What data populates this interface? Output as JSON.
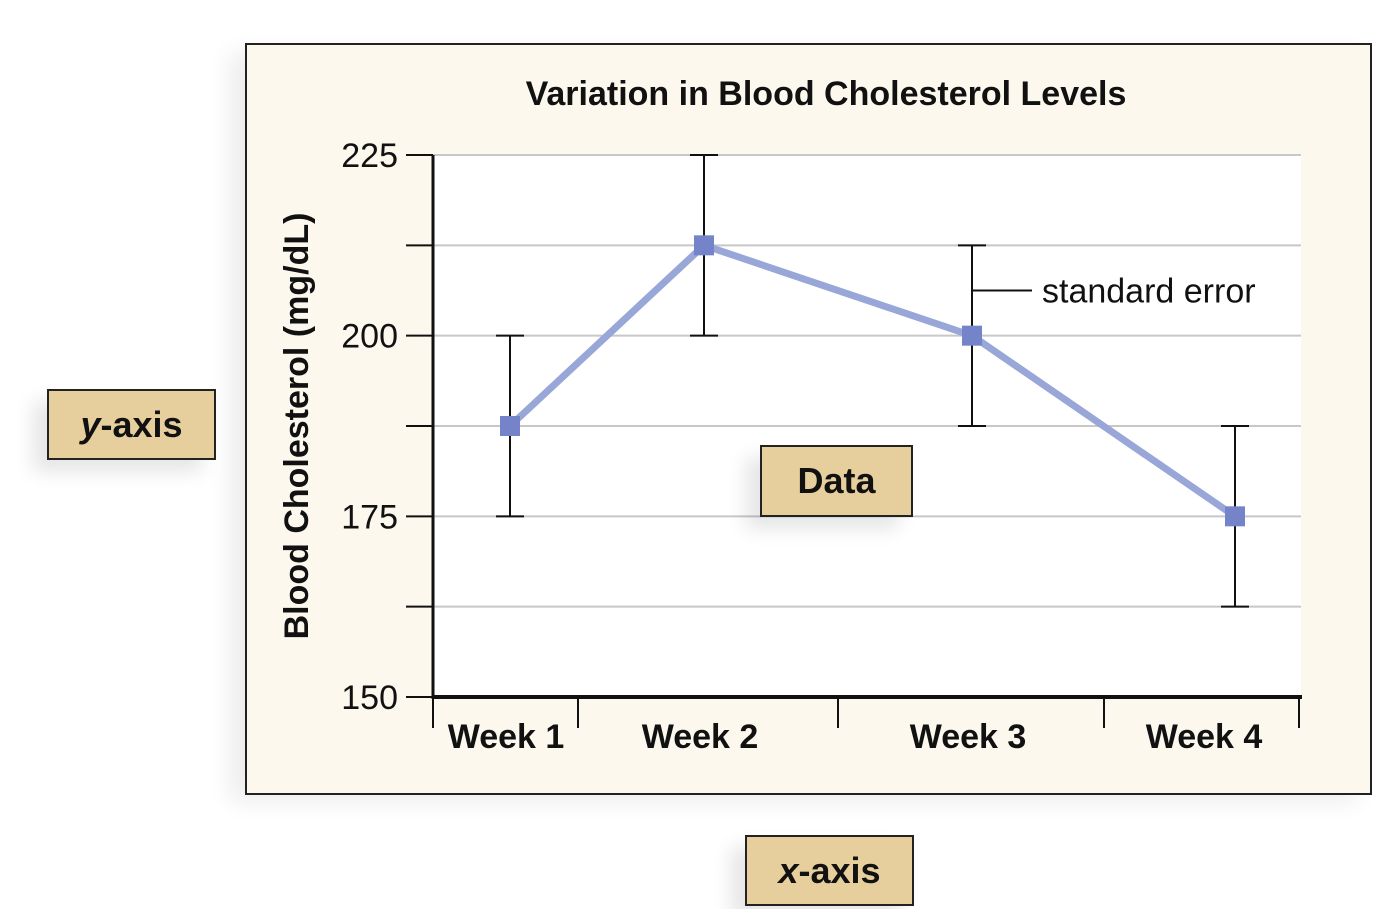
{
  "chart_data": {
    "type": "line",
    "title": "Variation in Blood Cholesterol Levels",
    "xlabel": "",
    "ylabel": "Blood Cholesterol (mg/dL)",
    "categories": [
      "Week 1",
      "Week 2",
      "Week 3",
      "Week 4"
    ],
    "values": [
      187.5,
      212.5,
      200,
      175
    ],
    "error": [
      12.5,
      12.5,
      12.5,
      12.5
    ],
    "ylim": [
      150,
      225
    ],
    "yticks": [
      150,
      175,
      200,
      225
    ],
    "grid_lines": [
      162.5,
      175,
      187.5,
      200,
      212.5,
      225
    ],
    "grid": true,
    "annotation": {
      "label": "standard error",
      "category_index": 2
    },
    "colors": {
      "line": "#98a6d8",
      "marker": "#7584c8",
      "panel": "#fcf8ee",
      "plot": "#ffffff",
      "grid": "#c8c8c8"
    }
  },
  "callouts": {
    "y_axis": {
      "italic": "y",
      "rest": "-axis"
    },
    "data": "Data",
    "x_axis": {
      "italic": "x",
      "rest": "-axis"
    }
  }
}
